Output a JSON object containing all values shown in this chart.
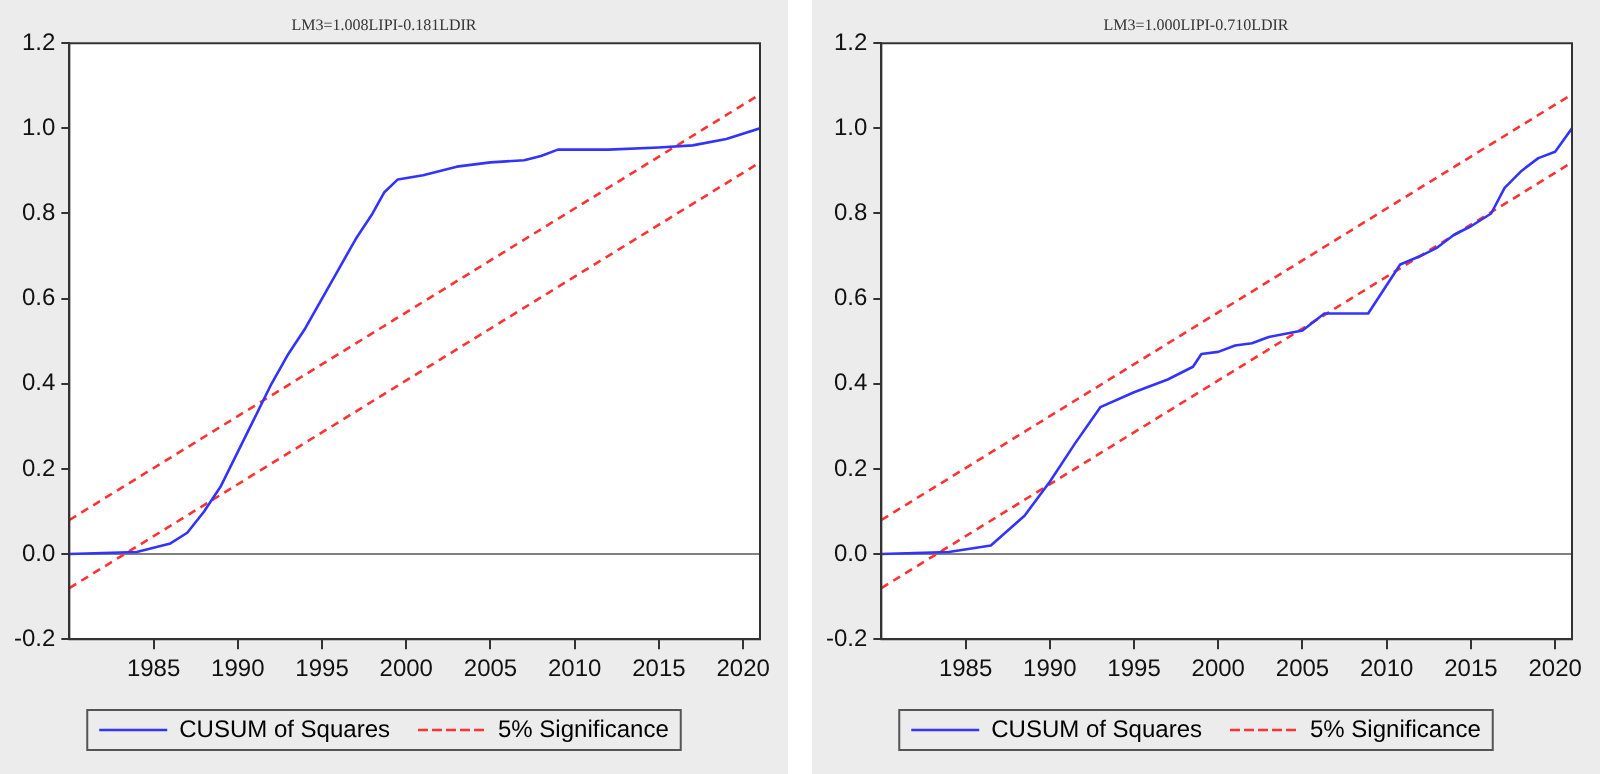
{
  "chart_data": [
    {
      "type": "line",
      "title": "LM3=1.008LIPI-0.181LDIR",
      "xlim": [
        1980,
        2021
      ],
      "xticks": [
        1985,
        1990,
        1995,
        2000,
        2005,
        2010,
        2015,
        2020
      ],
      "ylim": [
        -0.2,
        1.2
      ],
      "yticks": [
        {
          "value": -0.2,
          "label": "-0.2"
        },
        {
          "value": 0,
          "label": "0.0"
        },
        0.2,
        0.4,
        0.6,
        0.8,
        {
          "value": 1,
          "label": "1.0"
        },
        1.2
      ],
      "grid": false,
      "legend": "bottom",
      "marker": "none",
      "ref_lines": [
        {
          "axis": "y",
          "value": 0,
          "color": "#808080"
        }
      ],
      "series": [
        {
          "name": "CUSUM of Squares",
          "color": "#3333ff",
          "line_style": "solid",
          "x": [
            1980,
            1984,
            1986,
            1987,
            1988,
            1989,
            1990,
            1991,
            1992,
            1993,
            1994,
            1995,
            1996,
            1997,
            1998,
            1998.7,
            1999.5,
            2001,
            2003,
            2005,
            2007,
            2008,
            2009,
            2012,
            2015,
            2017,
            2019,
            2021
          ],
          "values": [
            0,
            0.005,
            0.025,
            0.05,
            0.1,
            0.16,
            0.24,
            0.32,
            0.4,
            0.47,
            0.53,
            0.6,
            0.67,
            0.74,
            0.8,
            0.85,
            0.88,
            0.89,
            0.91,
            0.92,
            0.925,
            0.935,
            0.95,
            0.95,
            0.955,
            0.96,
            0.975,
            1.0
          ]
        },
        {
          "name": "5% Significance",
          "color": "#ff3333",
          "line_style": "dashed",
          "x": [
            1980,
            2021
          ],
          "values": [
            0.08,
            1.08
          ]
        },
        {
          "color": "#ff3333",
          "line_style": "dashed",
          "x": [
            1980,
            2021
          ],
          "values": [
            -0.08,
            0.92
          ]
        }
      ]
    },
    {
      "type": "line",
      "title": "LM3=1.000LIPI-0.710LDIR",
      "xlim": [
        1980,
        2021
      ],
      "xticks": [
        1985,
        1990,
        1995,
        2000,
        2005,
        2010,
        2015,
        2020
      ],
      "ylim": [
        -0.2,
        1.2
      ],
      "yticks": [
        {
          "value": -0.2,
          "label": "-0.2"
        },
        {
          "value": 0,
          "label": "0.0"
        },
        0.2,
        0.4,
        0.6,
        0.8,
        {
          "value": 1,
          "label": "1.0"
        },
        1.2
      ],
      "grid": false,
      "legend": "bottom",
      "marker": "none",
      "ref_lines": [
        {
          "axis": "y",
          "value": 0,
          "color": "#808080"
        }
      ],
      "series": [
        {
          "name": "CUSUM of Squares",
          "color": "#3333ff",
          "line_style": "solid",
          "x": [
            1980,
            1984,
            1986.5,
            1988.5,
            1990,
            1991.5,
            1993,
            1995,
            1997,
            1998.5,
            1999,
            2000,
            2001,
            2002,
            2003,
            2005,
            2006.3,
            2008.9,
            2010.8,
            2012,
            2013,
            2014,
            2015,
            2016.2,
            2017,
            2018,
            2019,
            2020,
            2021
          ],
          "values": [
            0,
            0.005,
            0.02,
            0.09,
            0.17,
            0.26,
            0.345,
            0.38,
            0.41,
            0.44,
            0.47,
            0.475,
            0.49,
            0.495,
            0.51,
            0.525,
            0.565,
            0.565,
            0.68,
            0.7,
            0.72,
            0.75,
            0.77,
            0.8,
            0.86,
            0.9,
            0.93,
            0.945,
            1.0
          ]
        },
        {
          "name": "5% Significance",
          "color": "#ff3333",
          "line_style": "dashed",
          "x": [
            1980,
            2021
          ],
          "values": [
            0.08,
            1.08
          ]
        },
        {
          "color": "#ff3333",
          "line_style": "dashed",
          "x": [
            1980,
            2021
          ],
          "values": [
            -0.08,
            0.92
          ]
        }
      ]
    }
  ]
}
